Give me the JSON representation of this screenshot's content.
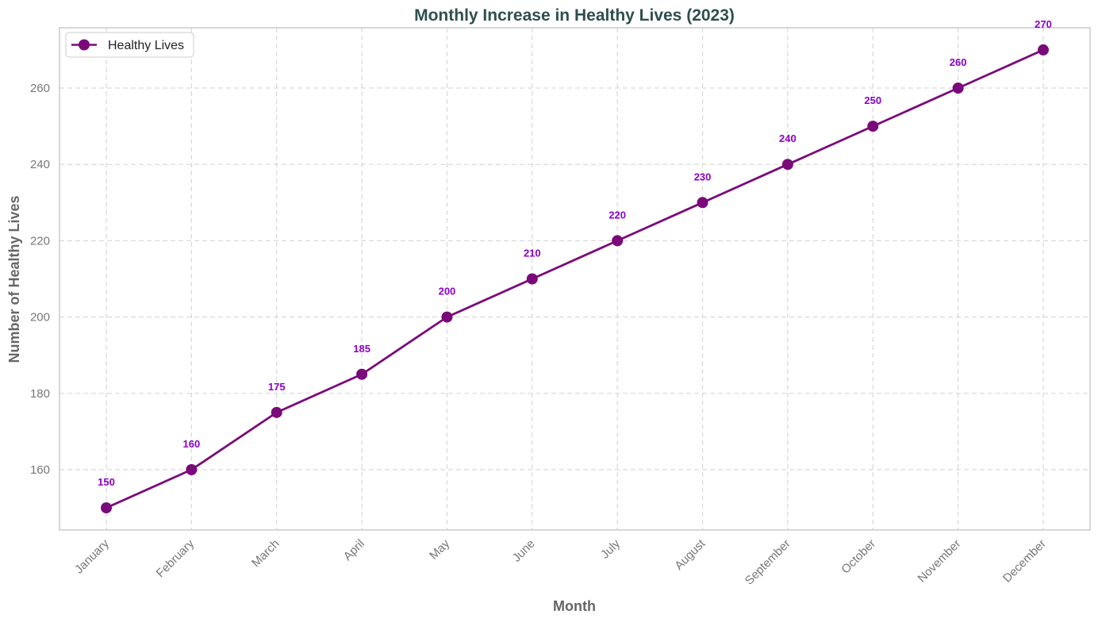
{
  "chart_data": {
    "type": "line",
    "title": "Monthly Increase in Healthy Lives (2023)",
    "xlabel": "Month",
    "ylabel": "Number of Healthy Lives",
    "categories": [
      "January",
      "February",
      "March",
      "April",
      "May",
      "June",
      "July",
      "August",
      "September",
      "October",
      "November",
      "December"
    ],
    "series": [
      {
        "name": "Healthy Lives",
        "values": [
          150,
          160,
          175,
          185,
          200,
          210,
          220,
          230,
          240,
          250,
          260,
          270
        ],
        "color": "#7a0a7a",
        "label_color": "#8b00c8",
        "marker": "circle"
      }
    ],
    "ylim": [
      144.2,
      275.8
    ],
    "yticks": [
      160,
      180,
      200,
      220,
      240,
      260
    ],
    "grid": true,
    "legend": "top-left",
    "colors": {
      "title": "#2f4f4f",
      "axis_label": "#666666",
      "tick_label": "#777777",
      "grid": "#d9d9d9",
      "frame": "#cccccc"
    }
  }
}
